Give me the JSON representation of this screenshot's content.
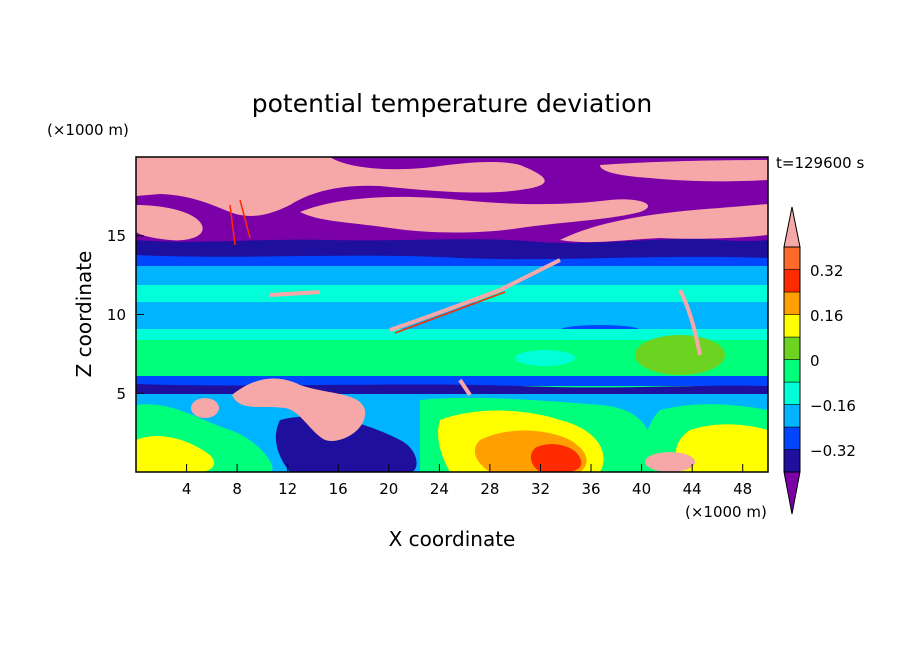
{
  "chart_data": {
    "type": "heatmap",
    "title": "potential temperature deviation",
    "xlabel": "X coordinate",
    "ylabel": "Z coordinate",
    "x_unit": "(×1000 m)",
    "y_unit": "(×1000 m)",
    "time_label": "t=129600 s",
    "xlim": [
      0,
      50
    ],
    "ylim": [
      0,
      20
    ],
    "x_ticks": [
      "4",
      "8",
      "12",
      "16",
      "20",
      "24",
      "28",
      "32",
      "36",
      "40",
      "44",
      "48"
    ],
    "y_ticks": [
      "5",
      "10",
      "15"
    ],
    "colorbar": {
      "levels": [
        -0.4,
        -0.32,
        -0.24,
        -0.16,
        -0.08,
        0,
        0.08,
        0.16,
        0.24,
        0.32,
        0.4
      ],
      "tick_labels": [
        "0.32",
        "0.16",
        "0",
        "−0.16",
        "−0.32"
      ],
      "colors": [
        "#7c00a8",
        "#1e0f9e",
        "#0046ff",
        "#00b4ff",
        "#00ffd8",
        "#00ff7a",
        "#6cd420",
        "#ffff00",
        "#ffa000",
        "#ff2a00",
        "#ff6a2a",
        "#f6a8a8"
      ]
    }
  }
}
